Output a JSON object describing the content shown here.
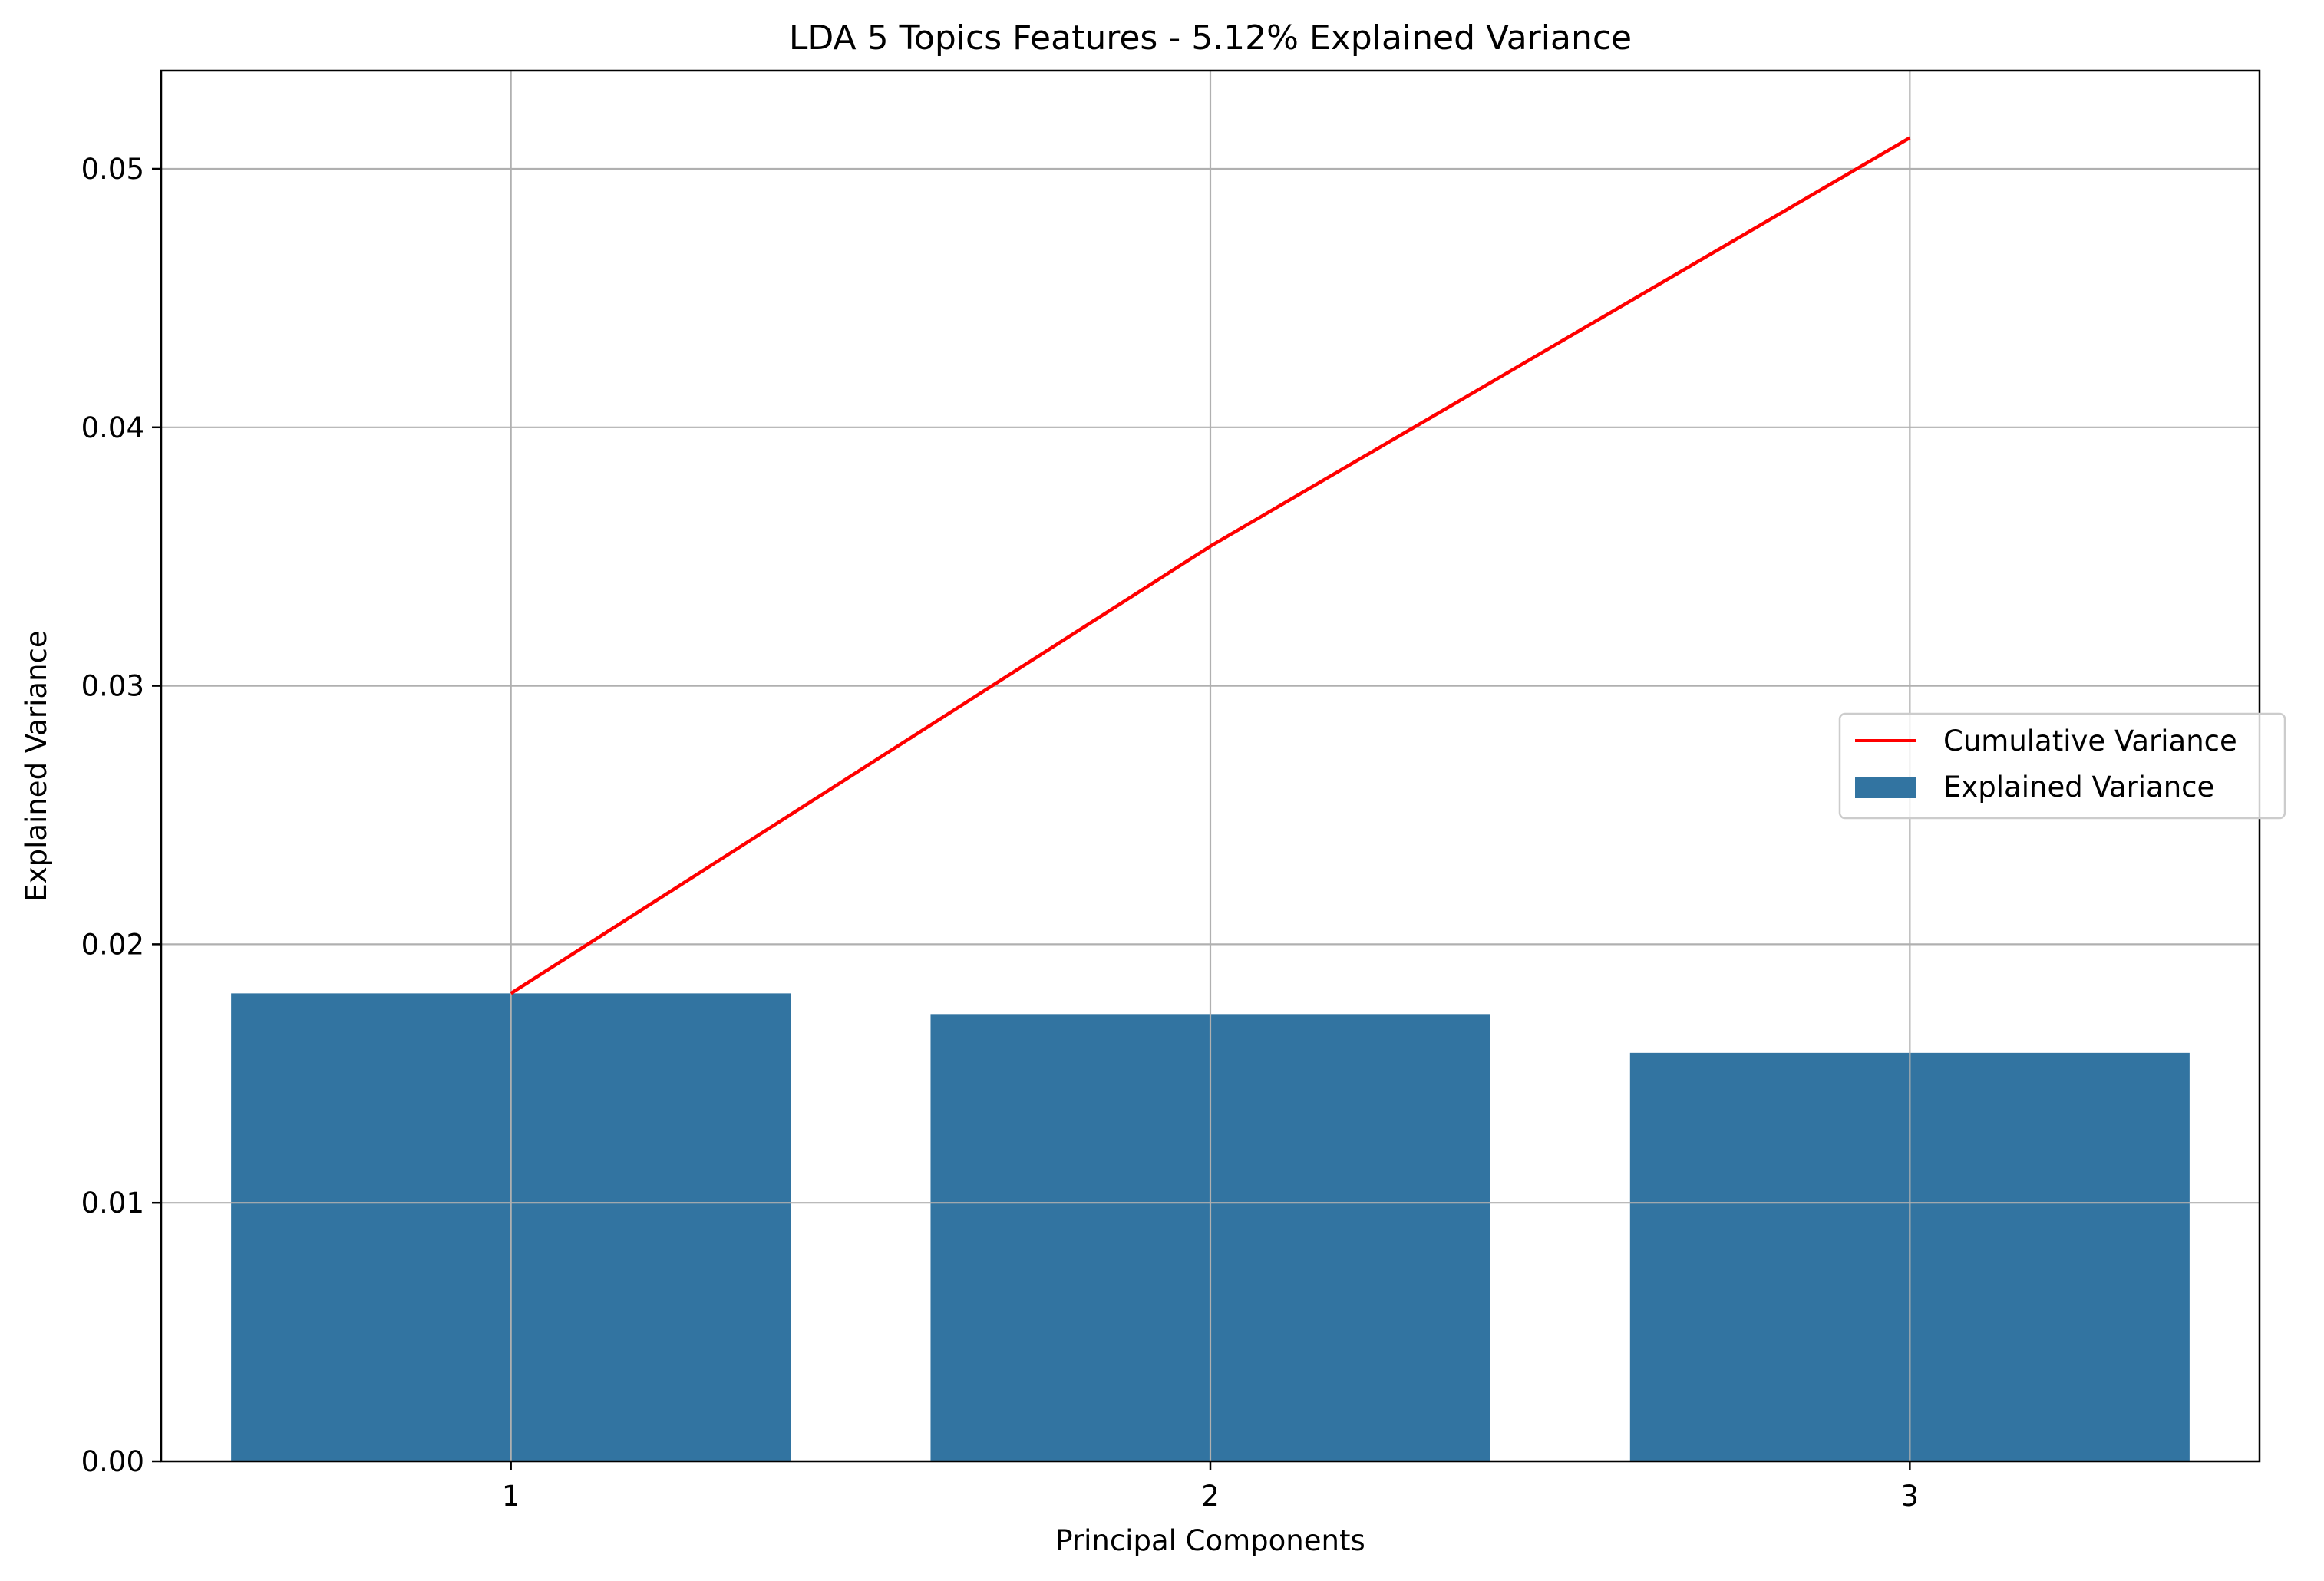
{
  "chart_data": {
    "type": "bar",
    "title": "LDA 5 Topics Features - 5.12% Explained Variance",
    "xlabel": "Principal Components",
    "ylabel": "Explained Variance",
    "categories": [
      "1",
      "2",
      "3"
    ],
    "ylim": [
      0,
      0.0538
    ],
    "yticks": [
      0.0,
      0.01,
      0.02,
      0.03,
      0.04,
      0.05
    ],
    "ytick_labels": [
      "0.00",
      "0.01",
      "0.02",
      "0.03",
      "0.04",
      "0.05"
    ],
    "grid": true,
    "legend_position": "center-right",
    "series": [
      {
        "name": "Explained Variance",
        "kind": "bar",
        "color": "#3274a1",
        "values": [
          0.0181,
          0.0173,
          0.0158
        ]
      },
      {
        "name": "Cumulative Variance",
        "kind": "line",
        "color": "#ff0000",
        "values": [
          0.0181,
          0.0354,
          0.0512
        ]
      }
    ]
  }
}
